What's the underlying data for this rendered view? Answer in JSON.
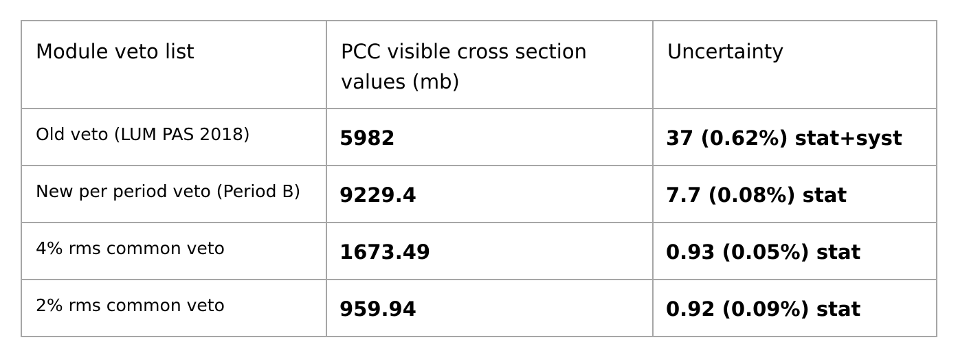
{
  "table": {
    "headers": [
      "Module veto list",
      "PCC visible cross section values (mb)",
      "Uncertainty"
    ],
    "rows": [
      {
        "label": "Old veto (LUM PAS 2018)",
        "cross_section": "5982",
        "uncertainty": "37 (0.62%) stat+syst"
      },
      {
        "label": "New per period veto (Period B)",
        "cross_section": "9229.4",
        "uncertainty": "7.7 (0.08%) stat"
      },
      {
        "label": "4% rms common veto",
        "cross_section": "1673.49",
        "uncertainty": "0.93 (0.05%) stat"
      },
      {
        "label": "2% rms common veto",
        "cross_section": "959.94",
        "uncertainty": "0.92 (0.09%) stat"
      }
    ]
  }
}
